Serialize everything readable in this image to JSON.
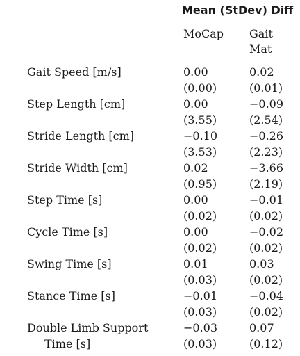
{
  "header": {
    "group_label": "Mean (StDev) Diff",
    "columns": [
      "MoCap",
      "Gait\nMat"
    ]
  },
  "rows": [
    {
      "label": "Gait Speed [m/s]",
      "mocap_mean": "0.00",
      "mocap_sd": "(0.00)",
      "gaitmat_mean": "0.02",
      "gaitmat_sd": "(0.01)"
    },
    {
      "label": "Step Length [cm]",
      "mocap_mean": "0.00",
      "mocap_sd": "(3.55)",
      "gaitmat_mean": "−0.09",
      "gaitmat_sd": "(2.54)"
    },
    {
      "label": "Stride Length [cm]",
      "mocap_mean": "−0.10",
      "mocap_sd": "(3.53)",
      "gaitmat_mean": "−0.26",
      "gaitmat_sd": "(2.23)"
    },
    {
      "label": "Stride Width [cm]",
      "mocap_mean": "0.02",
      "mocap_sd": "(0.95)",
      "gaitmat_mean": "−3.66",
      "gaitmat_sd": "(2.19)"
    },
    {
      "label": "Step Time [s]",
      "mocap_mean": "0.00",
      "mocap_sd": "(0.02)",
      "gaitmat_mean": "−0.01",
      "gaitmat_sd": "(0.02)"
    },
    {
      "label": "Cycle Time [s]",
      "mocap_mean": "0.00",
      "mocap_sd": "(0.02)",
      "gaitmat_mean": "−0.02",
      "gaitmat_sd": "(0.02)"
    },
    {
      "label": "Swing Time [s]",
      "mocap_mean": "0.01",
      "mocap_sd": "(0.03)",
      "gaitmat_mean": "0.03",
      "gaitmat_sd": "(0.02)"
    },
    {
      "label": "Stance Time [s]",
      "mocap_mean": "−0.01",
      "mocap_sd": "(0.03)",
      "gaitmat_mean": "−0.04",
      "gaitmat_sd": "(0.02)"
    },
    {
      "label": "Double Limb Support",
      "label_line2": "Time [s]",
      "mocap_mean": "−0.03",
      "mocap_sd": "(0.03)",
      "gaitmat_mean": "0.07",
      "gaitmat_sd": "(0.12)"
    }
  ]
}
